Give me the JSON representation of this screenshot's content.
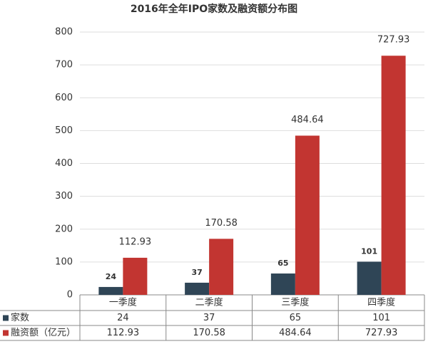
{
  "chart_data": {
    "type": "bar",
    "title": "2016年全年IPO家数及融资额分布图",
    "categories": [
      "一季度",
      "二季度",
      "三季度",
      "四季度"
    ],
    "series": [
      {
        "name": "家数",
        "color": "#2f4556",
        "values": [
          24,
          37,
          65,
          101
        ]
      },
      {
        "name": "融资额（亿元）",
        "color": "#c23531",
        "values": [
          112.93,
          170.58,
          484.64,
          727.93
        ]
      }
    ],
    "ylim": [
      0,
      800
    ],
    "yticks": [
      0,
      100,
      200,
      300,
      400,
      500,
      600,
      700,
      800
    ],
    "grid": true
  }
}
